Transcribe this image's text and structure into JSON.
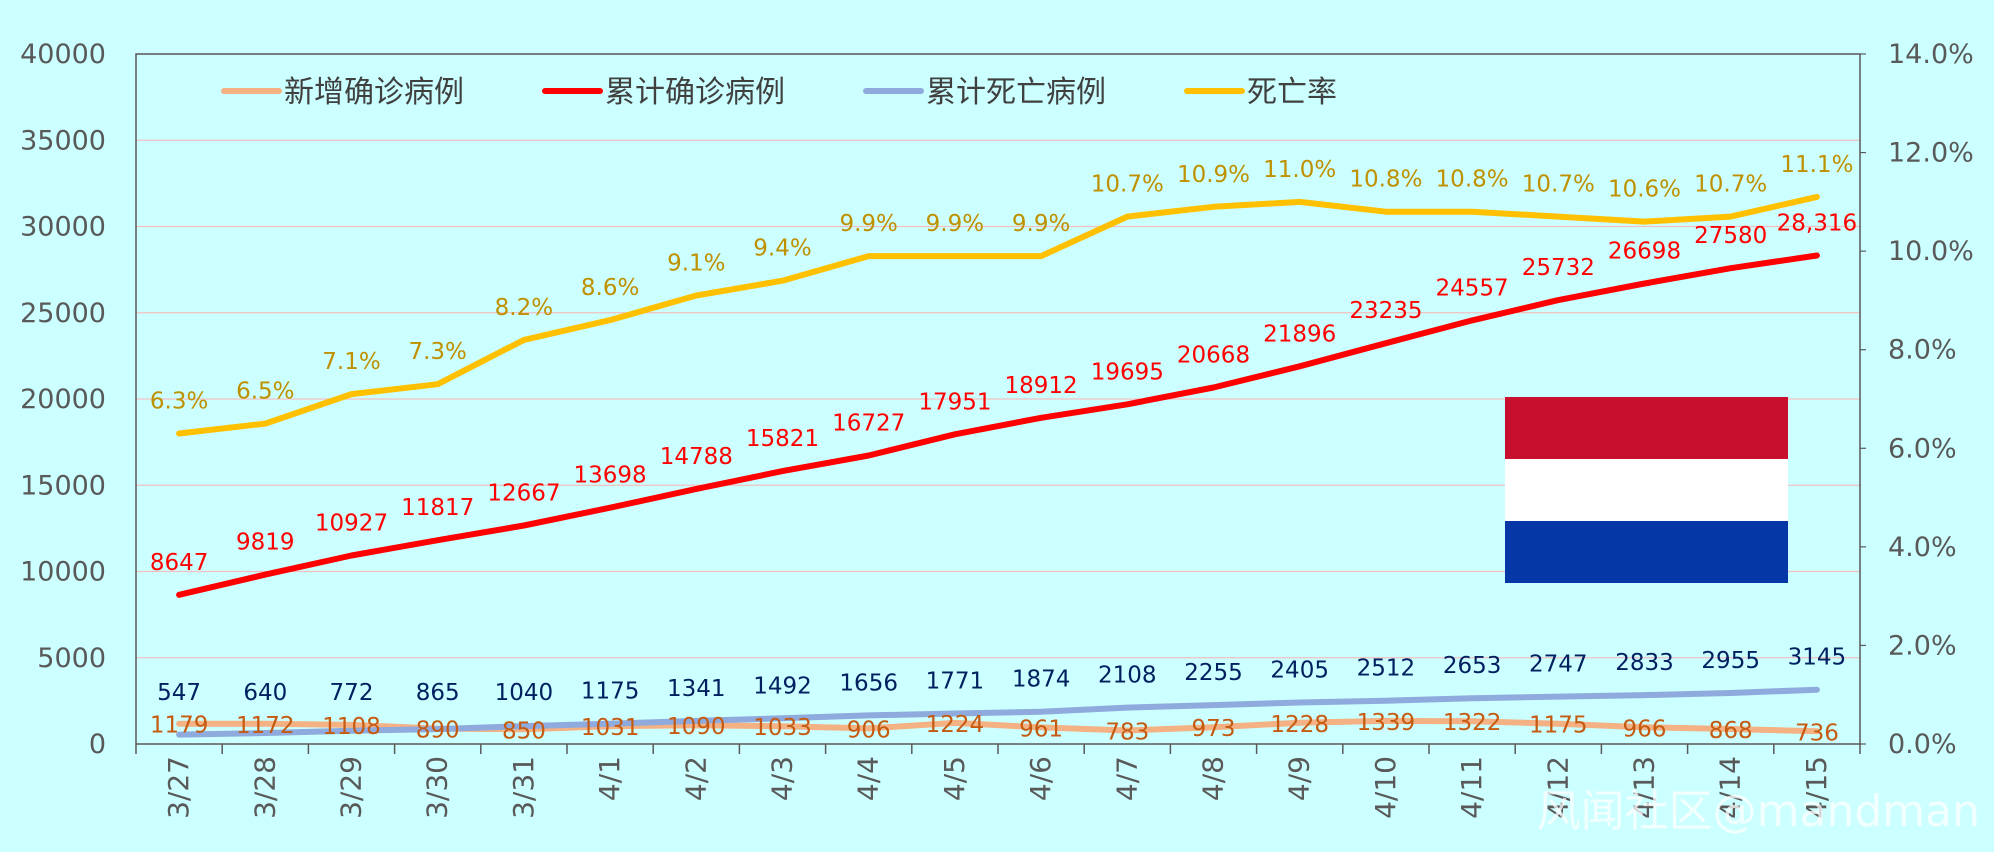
{
  "chart_data": {
    "type": "line",
    "title": "",
    "categories": [
      "3/27",
      "3/28",
      "3/29",
      "3/30",
      "3/31",
      "4/1",
      "4/2",
      "4/3",
      "4/4",
      "4/5",
      "4/6",
      "4/7",
      "4/8",
      "4/9",
      "4/10",
      "4/11",
      "4/12",
      "4/13",
      "4/14",
      "4/15"
    ],
    "y_left": {
      "min": 0,
      "max": 40000,
      "step": 5000,
      "ticks": [
        "0",
        "5000",
        "10000",
        "15000",
        "20000",
        "25000",
        "30000",
        "35000",
        "40000"
      ]
    },
    "y_right": {
      "min": 0,
      "max": 14,
      "step": 2,
      "ticks": [
        "0.0%",
        "2.0%",
        "4.0%",
        "6.0%",
        "8.0%",
        "10.0%",
        "12.0%",
        "14.0%"
      ]
    },
    "grid": true,
    "legend_position": "top",
    "series": [
      {
        "name": "新增确诊病例",
        "axis": "left",
        "color": "#f4b183",
        "values": [
          1179,
          1172,
          1108,
          890,
          850,
          1031,
          1090,
          1033,
          906,
          1224,
          961,
          783,
          973,
          1228,
          1339,
          1322,
          1175,
          966,
          868,
          736
        ],
        "labels": [
          "1179",
          "1172",
          "1108",
          "890",
          "850",
          "1031",
          "1090",
          "1033",
          "906",
          "1224",
          "961",
          "783",
          "973",
          "1228",
          "1339",
          "1322",
          "1175",
          "966",
          "868",
          "736"
        ],
        "label_color": "#c55a11"
      },
      {
        "name": "累计确诊病例",
        "axis": "left",
        "color": "#ff0000",
        "values": [
          8647,
          9819,
          10927,
          11817,
          12667,
          13698,
          14788,
          15821,
          16727,
          17951,
          18912,
          19695,
          20668,
          21896,
          23235,
          24557,
          25732,
          26698,
          27580,
          28316
        ],
        "labels": [
          "8647",
          "9819",
          "10927",
          "11817",
          "12667",
          "13698",
          "14788",
          "15821",
          "16727",
          "17951",
          "18912",
          "19695",
          "20668",
          "21896",
          "23235",
          "24557",
          "25732",
          "26698",
          "27580",
          "28,316"
        ],
        "label_color": "#ff0000"
      },
      {
        "name": "累计死亡病例",
        "axis": "left",
        "color": "#8faadc",
        "values": [
          547,
          640,
          772,
          865,
          1040,
          1175,
          1341,
          1492,
          1656,
          1771,
          1874,
          2108,
          2255,
          2405,
          2512,
          2653,
          2747,
          2833,
          2955,
          3145
        ],
        "labels": [
          "547",
          "640",
          "772",
          "865",
          "1040",
          "1175",
          "1341",
          "1492",
          "1656",
          "1771",
          "1874",
          "2108",
          "2255",
          "2405",
          "2512",
          "2653",
          "2747",
          "2833",
          "2955",
          "3145"
        ],
        "label_color": "#002060"
      },
      {
        "name": "死亡率",
        "axis": "right",
        "color": "#ffc000",
        "values": [
          6.3,
          6.5,
          7.1,
          7.3,
          8.2,
          8.6,
          9.1,
          9.4,
          9.9,
          9.9,
          9.9,
          10.7,
          10.9,
          11.0,
          10.8,
          10.8,
          10.7,
          10.6,
          10.7,
          11.1
        ],
        "labels": [
          "6.3%",
          "6.5%",
          "7.1%",
          "7.3%",
          "8.2%",
          "8.6%",
          "9.1%",
          "9.4%",
          "9.9%",
          "9.9%",
          "9.9%",
          "10.7%",
          "10.9%",
          "11.0%",
          "10.8%",
          "10.8%",
          "10.7%",
          "10.6%",
          "10.7%",
          "11.1%"
        ],
        "label_color": "#bf9000"
      }
    ],
    "flag": {
      "country": "Netherlands",
      "colors": [
        "#c8102e",
        "#ffffff",
        "#0538a6"
      ]
    }
  },
  "watermark": "风闻社区@mandman"
}
